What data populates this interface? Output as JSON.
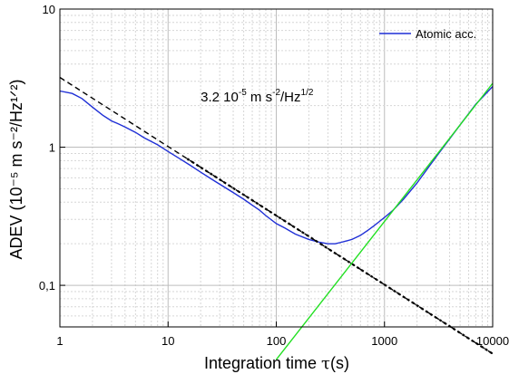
{
  "chart_data": {
    "type": "line",
    "title": "",
    "xlabel_main": "Integration time ",
    "xlabel_symbol": "τ",
    "xlabel_unit": "(s)",
    "ylabel": "ADEV (10⁻⁵ m s⁻²/Hz¹ᐟ²)",
    "xscale": "log",
    "yscale": "log",
    "xlim": [
      1,
      10000
    ],
    "ylim": [
      0.05,
      10
    ],
    "grid": true,
    "legend_position": "top-right",
    "x_ticks": [
      {
        "value": 1,
        "label": "1"
      },
      {
        "value": 10,
        "label": "10"
      },
      {
        "value": 100,
        "label": "100"
      },
      {
        "value": 1000,
        "label": "1000"
      },
      {
        "value": 10000,
        "label": "10000"
      }
    ],
    "y_ticks": [
      {
        "value": 0.1,
        "label": "0,1"
      },
      {
        "value": 1,
        "label": "1"
      },
      {
        "value": 10,
        "label": "10"
      }
    ],
    "annotation": {
      "base": "3.2 10",
      "exp1": "-5",
      "mid": " m s",
      "exp2": "-2",
      "tail": "/Hz",
      "exp3": "1/2",
      "x": 20,
      "y": 2.15
    },
    "series": [
      {
        "name": "Atomic acc.",
        "style": "solid",
        "color": "#1f2fd6",
        "x": [
          1,
          1.3,
          1.6,
          2,
          2.5,
          3,
          3.5,
          4,
          5,
          6,
          8,
          10,
          13,
          16,
          20,
          25,
          30,
          40,
          50,
          60,
          70,
          80,
          100,
          120,
          150,
          200,
          250,
          300,
          350,
          400,
          450,
          500,
          600,
          700,
          800,
          900,
          1000,
          1200,
          1500,
          2000,
          3000,
          5000,
          7000,
          10000
        ],
        "y": [
          2.55,
          2.45,
          2.25,
          1.95,
          1.7,
          1.55,
          1.47,
          1.4,
          1.28,
          1.17,
          1.04,
          0.93,
          0.82,
          0.74,
          0.66,
          0.59,
          0.54,
          0.47,
          0.42,
          0.38,
          0.35,
          0.32,
          0.28,
          0.26,
          0.235,
          0.215,
          0.205,
          0.2,
          0.2,
          0.205,
          0.21,
          0.215,
          0.23,
          0.25,
          0.27,
          0.29,
          0.31,
          0.35,
          0.42,
          0.55,
          0.85,
          1.45,
          2.05,
          2.75
        ]
      },
      {
        "name": "",
        "style": "dashed",
        "color": "#000000",
        "x": [
          1,
          10000
        ],
        "y": [
          3.2,
          0.032
        ]
      },
      {
        "name": "",
        "style": "dotted",
        "color": "#000000",
        "x": [
          15,
          10000
        ],
        "y": [
          0.826,
          0.032
        ]
      },
      {
        "name": "",
        "style": "solid",
        "color": "#22e022",
        "x": [
          100,
          10000
        ],
        "y": [
          0.029,
          2.9
        ]
      }
    ]
  }
}
